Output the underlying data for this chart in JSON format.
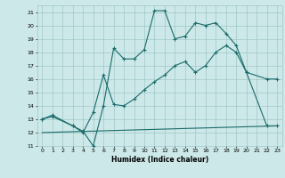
{
  "xlabel": "Humidex (Indice chaleur)",
  "xlim": [
    -0.5,
    23.5
  ],
  "ylim": [
    11,
    21.5
  ],
  "yticks": [
    11,
    12,
    13,
    14,
    15,
    16,
    17,
    18,
    19,
    20,
    21
  ],
  "xticks": [
    0,
    1,
    2,
    3,
    4,
    5,
    6,
    7,
    8,
    9,
    10,
    11,
    12,
    13,
    14,
    15,
    16,
    17,
    18,
    19,
    20,
    21,
    22,
    23
  ],
  "bg_color": "#cde8e8",
  "grid_color": "#a0c8c8",
  "line_color": "#1a6b6b",
  "line1_x": [
    0,
    1,
    3,
    4,
    5,
    6,
    7,
    8,
    9,
    10,
    11,
    12,
    13,
    14,
    15,
    16,
    17,
    18,
    19,
    20,
    22,
    23
  ],
  "line1_y": [
    13.0,
    13.2,
    12.5,
    12.1,
    11.0,
    14.0,
    18.3,
    17.5,
    17.5,
    18.2,
    21.1,
    21.1,
    19.0,
    19.2,
    20.2,
    20.0,
    20.2,
    19.4,
    18.5,
    16.5,
    12.5,
    12.5
  ],
  "line2_x": [
    0,
    1,
    3,
    4,
    5,
    6,
    7,
    8,
    9,
    10,
    11,
    12,
    13,
    14,
    15,
    16,
    17,
    18,
    19,
    20,
    22,
    23
  ],
  "line2_y": [
    13.0,
    13.3,
    12.5,
    12.0,
    13.5,
    16.3,
    14.1,
    14.0,
    14.5,
    15.2,
    15.8,
    16.3,
    17.0,
    17.3,
    16.5,
    17.0,
    18.0,
    18.5,
    18.0,
    16.5,
    16.0,
    16.0
  ],
  "line3_x": [
    0,
    23
  ],
  "line3_y": [
    12.0,
    12.5
  ]
}
